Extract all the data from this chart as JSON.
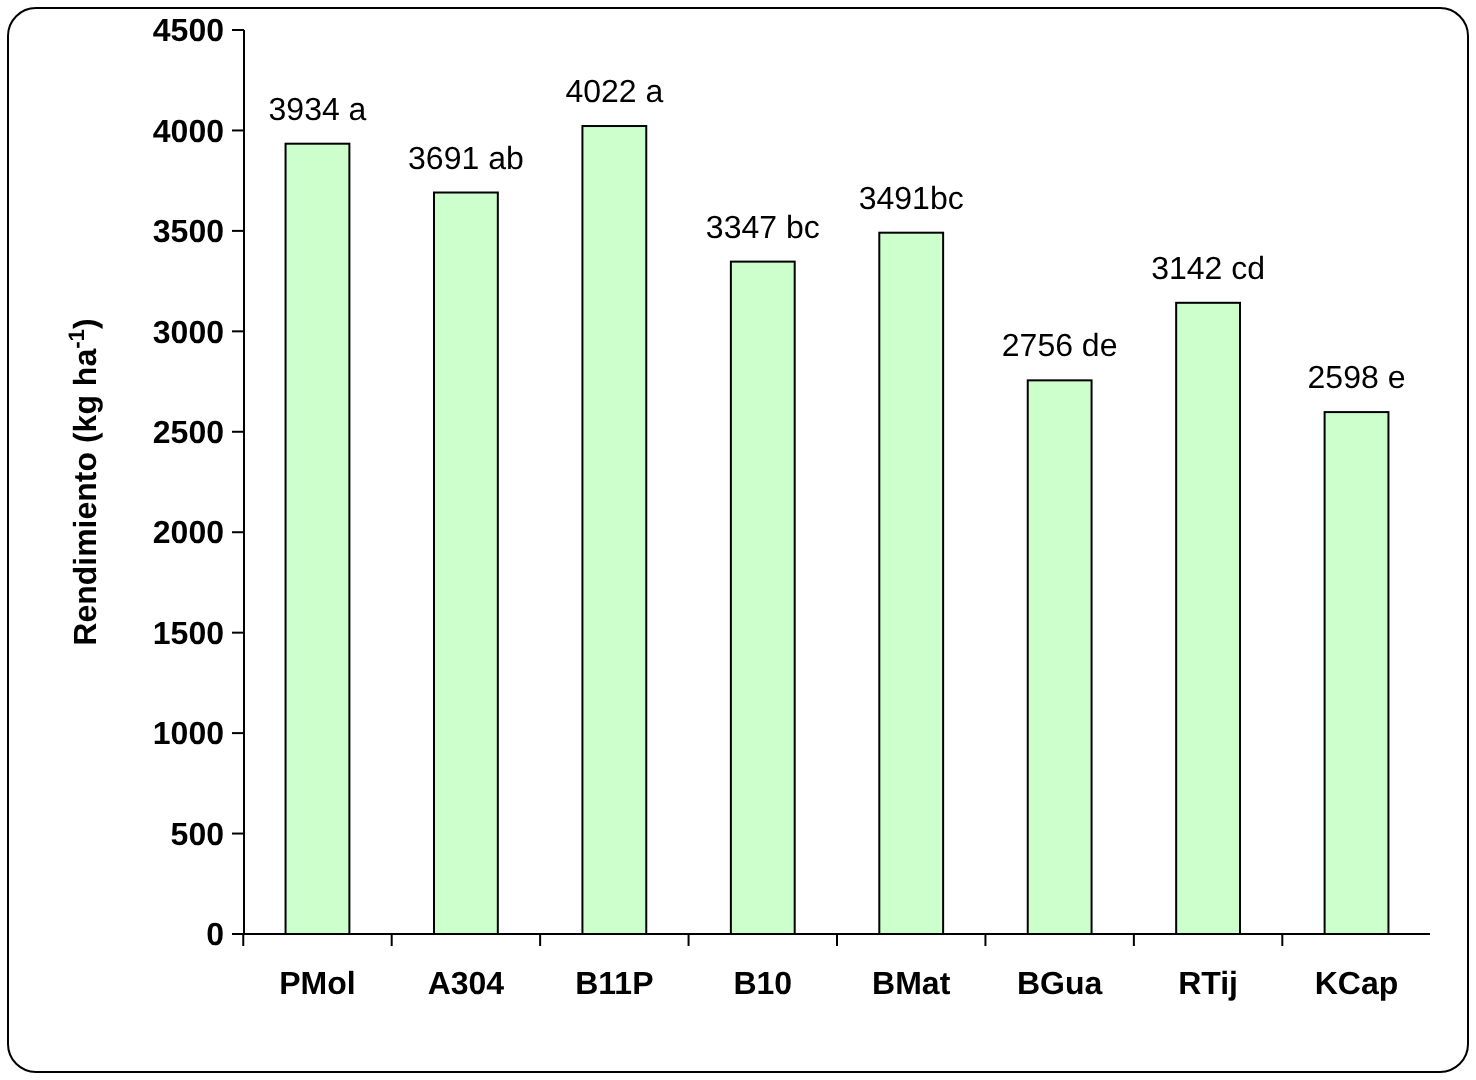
{
  "chart_data": {
    "type": "bar",
    "ylabel": "Rendimiento (kg ha$^{-1}$)",
    "categories": [
      "PMol",
      "A304",
      "B11P",
      "B10",
      "BMat",
      "BGua",
      "RTij",
      "KCap"
    ],
    "values": [
      3934,
      3691,
      4022,
      3347,
      3491,
      2756,
      3142,
      2598
    ],
    "value_labels": [
      "3934 a",
      "3691 ab",
      "4022 a",
      "3347 bc",
      "3491bc",
      "2756 de",
      "3142 cd",
      "2598 e"
    ],
    "color": "#ccffcc",
    "ylim": [
      0,
      4500
    ],
    "yticks": [
      0,
      500,
      1000,
      1500,
      2000,
      2500,
      3000,
      3500,
      4000,
      4500
    ],
    "grid": false
  }
}
